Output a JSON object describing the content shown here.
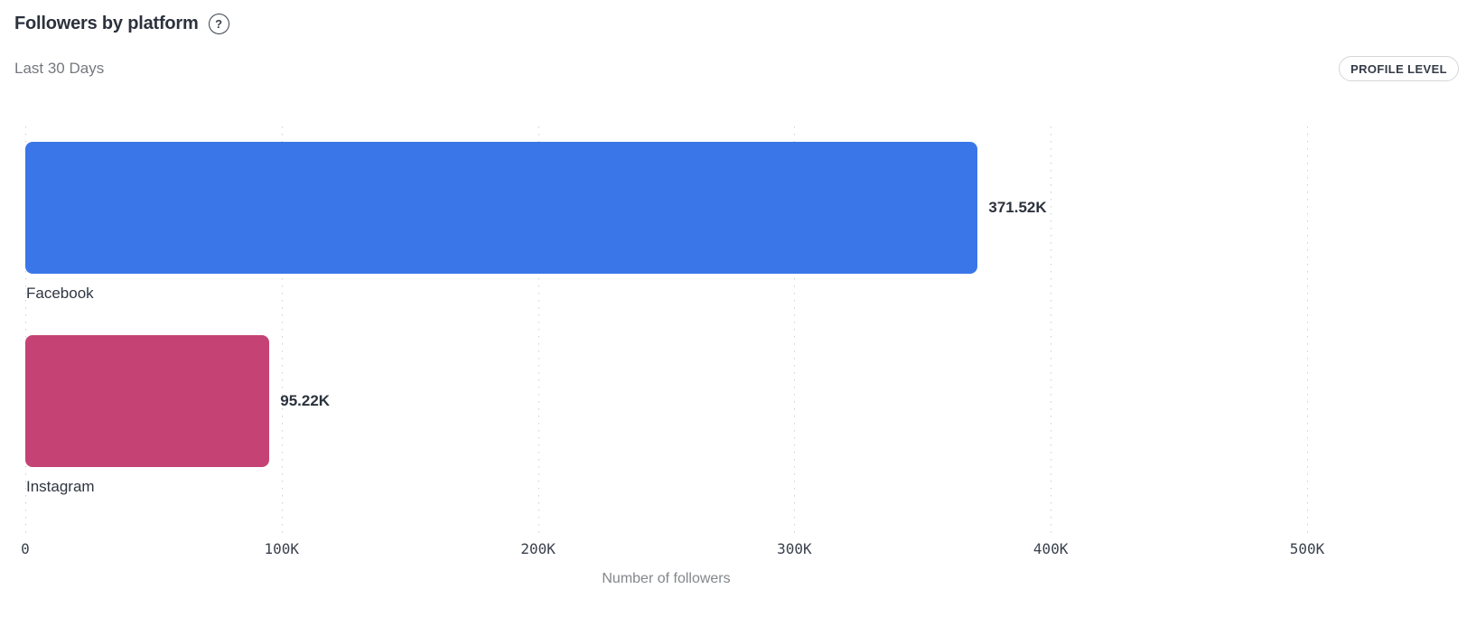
{
  "header": {
    "title": "Followers by platform",
    "help_icon_glyph": "?",
    "subtitle": "Last 30 Days",
    "profile_level_label": "PROFILE LEVEL"
  },
  "colors": {
    "facebook_bar": "#3b76e9",
    "instagram_bar": "#c54374",
    "gridline": "#cdd0d3",
    "title_text": "#2c323d",
    "muted_text": "#75797f"
  },
  "chart_data": {
    "type": "bar",
    "orientation": "horizontal",
    "title": "Followers by platform",
    "subtitle": "Last 30 Days",
    "categories": [
      "Facebook",
      "Instagram"
    ],
    "values": [
      371520,
      95220
    ],
    "value_labels": [
      "371.52K",
      "95.22K"
    ],
    "bar_colors": [
      "#3b76e9",
      "#c54374"
    ],
    "xlabel": "Number of followers",
    "x_ticks": [
      "0",
      "100K",
      "200K",
      "300K",
      "400K",
      "500K"
    ],
    "x_tick_values": [
      0,
      100000,
      200000,
      300000,
      400000,
      500000
    ],
    "xlim": [
      0,
      500000
    ],
    "grid": "dotted-vertical",
    "legend": "none"
  }
}
